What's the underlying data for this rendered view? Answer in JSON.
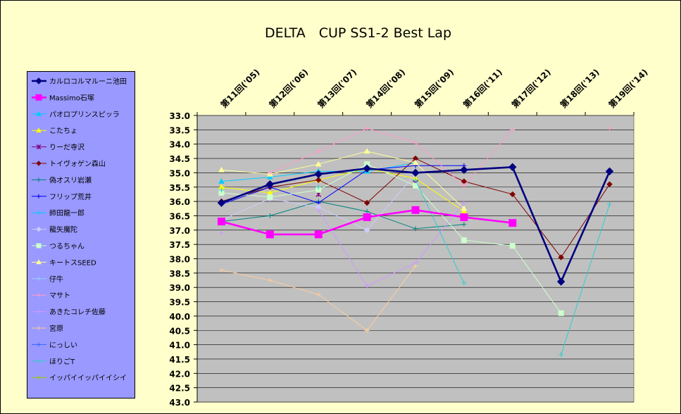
{
  "title": "DELTA　CUP SS1-2 Best Lap",
  "chart_data": {
    "type": "line",
    "title": "DELTA　CUP SS1-2 Best Lap",
    "categories": [
      "第11回('05)",
      "第12回('06)",
      "第13回('07)",
      "第14回('08)",
      "第15回('09)",
      "第16回('11)",
      "第17回('12)",
      "第18回('13)",
      "第19回('14)"
    ],
    "y_tick_labels": [
      "33.0",
      "33.5",
      "34.0",
      "34.5",
      "35.0",
      "35.5",
      "36.0",
      "36.5",
      "37.0",
      "37.5",
      "38.0",
      "38.5",
      "39.0",
      "39.5",
      "40.0",
      "40.5",
      "41.0",
      "41.5",
      "42.0",
      "42.5",
      "43.0"
    ],
    "ylim": [
      33.0,
      43.0
    ],
    "y_reversed": true,
    "grid": true,
    "legend_position": "left",
    "series": [
      {
        "name": "カルロコルマルーニ池田",
        "color": "#000080",
        "marker": "diamond",
        "bold": true,
        "values": [
          36.05,
          35.4,
          35.05,
          34.85,
          35.0,
          34.9,
          34.8,
          38.8,
          34.95
        ]
      },
      {
        "name": "Massimo石塚",
        "color": "#ff00ff",
        "marker": "square",
        "bold": true,
        "values": [
          36.7,
          37.15,
          37.15,
          36.55,
          36.3,
          36.55,
          36.75,
          null,
          null
        ]
      },
      {
        "name": "パオロプリンスピッラ",
        "color": "#00ccff",
        "marker": "triangle",
        "values": [
          35.3,
          35.15,
          34.95,
          34.95,
          34.65,
          null,
          null,
          null,
          null
        ]
      },
      {
        "name": "こたちょ",
        "color": "#ffff00",
        "marker": "triangle",
        "values": [
          35.5,
          35.7,
          35.25,
          34.85,
          35.2,
          36.35,
          null,
          null,
          null
        ]
      },
      {
        "name": "りーだ寺沢",
        "color": "#800080",
        "marker": "x",
        "values": [
          null,
          null,
          35.75,
          null,
          35.35,
          null,
          null,
          null,
          null
        ]
      },
      {
        "name": "トイヴォゲン森山",
        "color": "#800000",
        "marker": "diamond",
        "values": [
          36.0,
          35.5,
          35.25,
          36.05,
          34.5,
          35.3,
          35.75,
          37.95,
          35.4
        ]
      },
      {
        "name": "偽オスリ岩瀬",
        "color": "#008080",
        "marker": "plus",
        "values": [
          36.7,
          36.5,
          36.0,
          36.35,
          36.95,
          36.8,
          null,
          null,
          null
        ]
      },
      {
        "name": "フリップ荒井",
        "color": "#0000ff",
        "marker": "plus",
        "values": [
          36.1,
          35.5,
          36.05,
          34.9,
          34.75,
          34.75,
          null,
          null,
          null
        ]
      },
      {
        "name": "師田龍一郎",
        "color": "#00ccff",
        "marker": "plus",
        "values": [
          null,
          null,
          null,
          null,
          null,
          null,
          null,
          null,
          null
        ]
      },
      {
        "name": "龍矢魔陀",
        "color": "#ccccff",
        "marker": "diamond",
        "values": [
          36.65,
          35.9,
          36.2,
          37.0,
          35.05,
          null,
          null,
          null,
          null
        ]
      },
      {
        "name": "つるちゃん",
        "color": "#ccffcc",
        "marker": "square",
        "values": [
          35.7,
          35.85,
          35.6,
          34.7,
          35.45,
          37.35,
          37.55,
          39.9,
          null
        ]
      },
      {
        "name": "キートスSEED",
        "color": "#ffff99",
        "marker": "triangle",
        "values": [
          34.9,
          35.05,
          34.7,
          34.25,
          34.65,
          36.25,
          null,
          null,
          null
        ]
      },
      {
        "name": "仔牛",
        "color": "#99ccff",
        "marker": "plus",
        "values": [
          null,
          null,
          null,
          null,
          null,
          null,
          null,
          null,
          null
        ]
      },
      {
        "name": "マサト",
        "color": "#ff99cc",
        "marker": "plus",
        "values": [
          null,
          35.0,
          34.25,
          33.45,
          33.95,
          35.45,
          33.5,
          null,
          33.45
        ]
      },
      {
        "name": "あきたコレチ佐藤",
        "color": "#cc99ff",
        "marker": "plus",
        "values": [
          37.1,
          null,
          36.3,
          38.95,
          38.15,
          36.05,
          null,
          null,
          null
        ]
      },
      {
        "name": "宮原",
        "color": "#ffcc99",
        "marker": "plus",
        "values": [
          38.4,
          38.75,
          39.25,
          40.5,
          38.25,
          null,
          null,
          null,
          null
        ]
      },
      {
        "name": "にっしい",
        "color": "#3366ff",
        "marker": "plus",
        "values": [
          null,
          null,
          null,
          null,
          null,
          null,
          null,
          null,
          null
        ]
      },
      {
        "name": "ほりごT",
        "color": "#33cccc",
        "marker": "plus",
        "values": [
          35.6,
          null,
          35.5,
          null,
          35.25,
          38.85,
          null,
          41.35,
          36.1
        ]
      },
      {
        "name": "イッパイイッパイイシイ",
        "color": "#99cc00",
        "marker": "plus",
        "values": [
          null,
          null,
          null,
          null,
          null,
          null,
          null,
          null,
          null
        ]
      }
    ]
  }
}
